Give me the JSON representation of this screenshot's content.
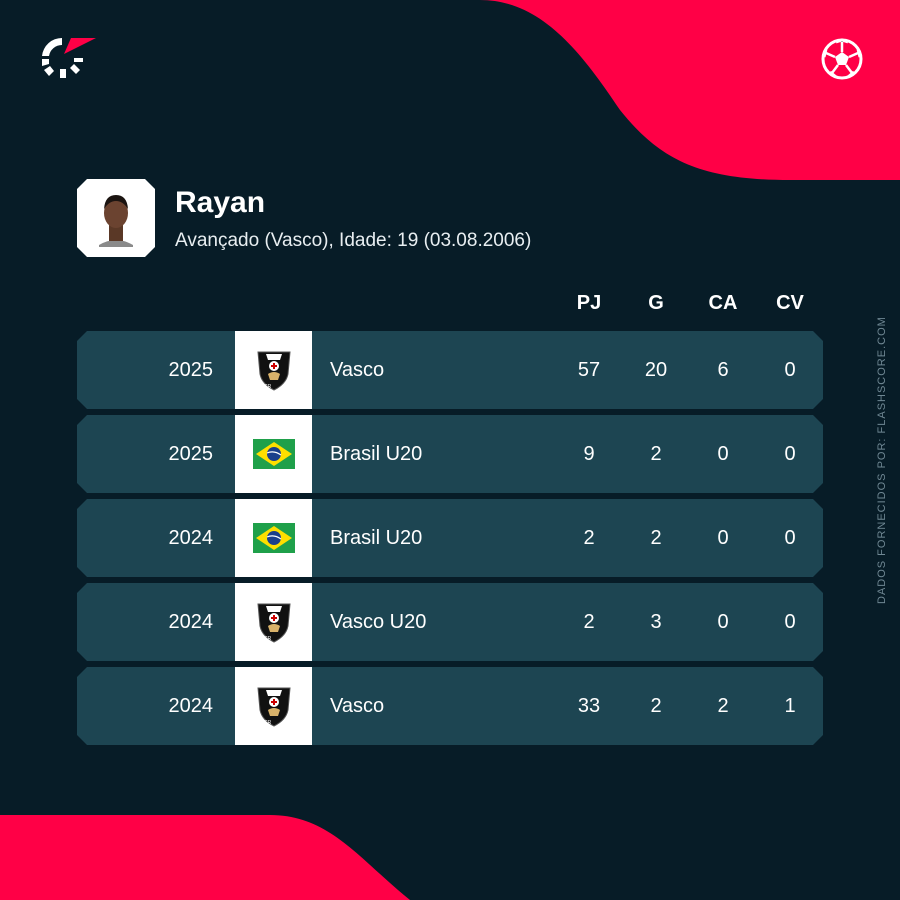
{
  "brand": {
    "accent": "#ff0046",
    "background": "#071c27",
    "row": "#1d4552"
  },
  "icons": {
    "logo": "flashscore-logo",
    "sport": "soccer-ball-icon"
  },
  "player": {
    "name": "Rayan",
    "details": "Avançado (Vasco), Idade: 19 (03.08.2006)"
  },
  "columns": [
    "PJ",
    "G",
    "CA",
    "CV"
  ],
  "rows": [
    {
      "season": "2025",
      "team": "Vasco",
      "crest": "vasco",
      "stats": [
        "57",
        "20",
        "6",
        "0"
      ]
    },
    {
      "season": "2025",
      "team": "Brasil U20",
      "crest": "brazil",
      "stats": [
        "9",
        "2",
        "0",
        "0"
      ]
    },
    {
      "season": "2024",
      "team": "Brasil U20",
      "crest": "brazil",
      "stats": [
        "2",
        "2",
        "0",
        "0"
      ]
    },
    {
      "season": "2024",
      "team": "Vasco U20",
      "crest": "vasco",
      "stats": [
        "2",
        "3",
        "0",
        "0"
      ]
    },
    {
      "season": "2024",
      "team": "Vasco",
      "crest": "vasco",
      "stats": [
        "33",
        "2",
        "2",
        "1"
      ]
    }
  ],
  "source": "DADOS FORNECIDOS POR: FLASHSCORE.COM"
}
